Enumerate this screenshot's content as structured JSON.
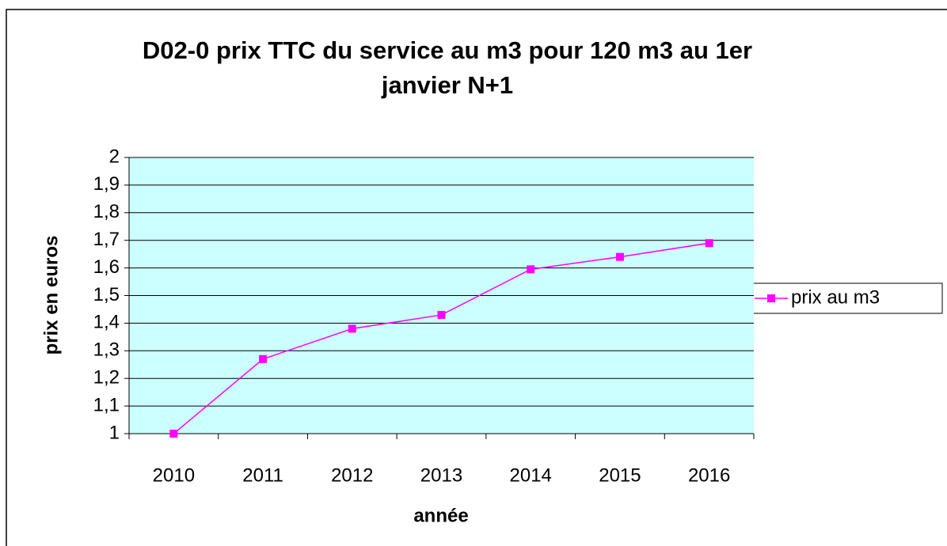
{
  "chart_data": {
    "type": "line",
    "title": "D02-0 prix TTC du service au m3 pour 120 m3 au 1er janvier N+1",
    "x_label": "année",
    "y_label": "prix en euros",
    "categories": [
      "2010",
      "2011",
      "2012",
      "2013",
      "2014",
      "2015",
      "2016"
    ],
    "series": [
      {
        "name": "prix au m3",
        "color": "#ff00ff",
        "values": [
          1.0,
          1.27,
          1.38,
          1.43,
          1.595,
          1.64,
          1.69
        ]
      }
    ],
    "ylim": [
      1,
      2
    ],
    "yticks": [
      1,
      {
        "value": 1.1,
        "label": "1,1"
      },
      {
        "value": 1.2,
        "label": "1,2"
      },
      {
        "value": 1.3,
        "label": "1,3"
      },
      {
        "value": 1.4,
        "label": "1,4"
      },
      {
        "value": 1.5,
        "label": "1,5"
      },
      {
        "value": 1.6,
        "label": "1,6"
      },
      {
        "value": 1.7,
        "label": "1,7"
      },
      {
        "value": 1.8,
        "label": "1,8"
      },
      {
        "value": 1.9,
        "label": "1,9"
      },
      2
    ],
    "grid": true,
    "plot_background": "#ccffff",
    "legend": "right"
  }
}
